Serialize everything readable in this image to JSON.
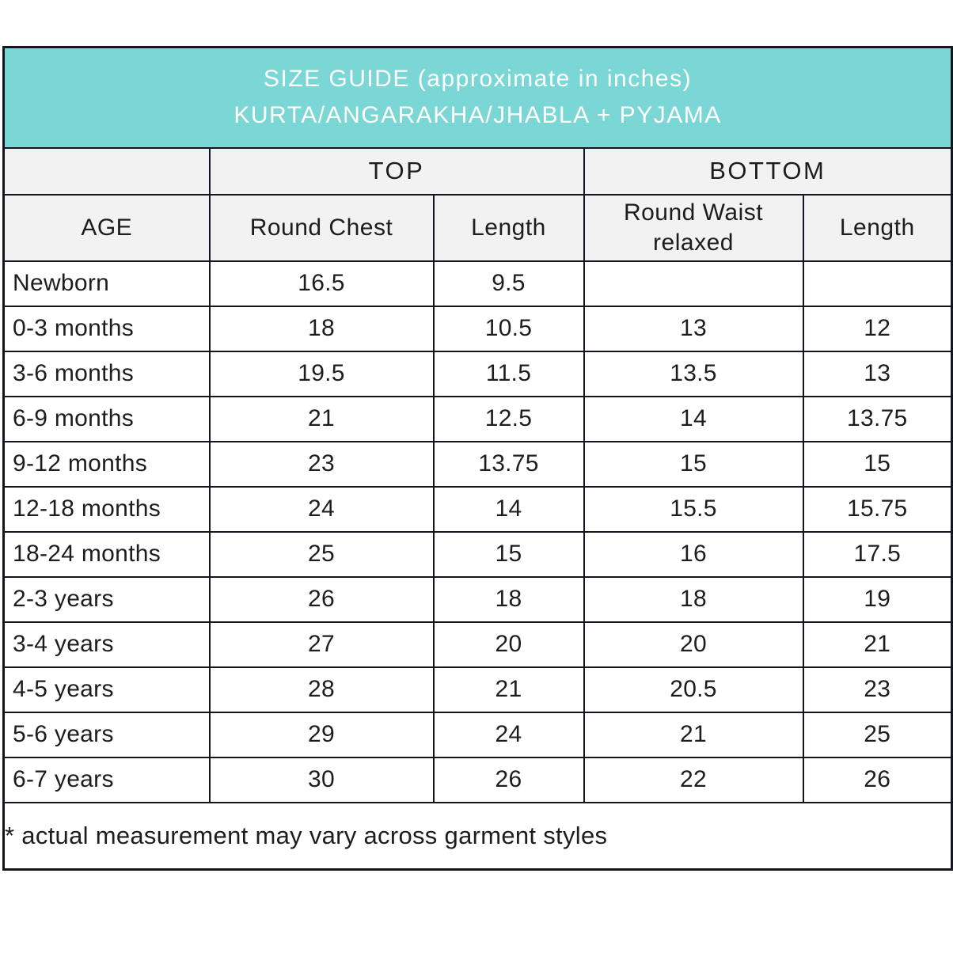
{
  "header": {
    "title_line1": "SIZE GUIDE (approximate in inches)",
    "title_line2": "KURTA/ANGARAKHA/JHABLA + PYJAMA"
  },
  "table": {
    "group_headers": {
      "age_spacer": "",
      "top": "TOP",
      "bottom": "BOTTOM"
    },
    "column_headers": {
      "age": "AGE",
      "round_chest": "Round Chest",
      "top_length": "Length",
      "round_waist": "Round Waist relaxed",
      "bottom_length": "Length"
    },
    "rows": [
      [
        "Newborn",
        "16.5",
        "9.5",
        "",
        ""
      ],
      [
        "0-3 months",
        "18",
        "10.5",
        "13",
        "12"
      ],
      [
        "3-6 months",
        "19.5",
        "11.5",
        "13.5",
        "13"
      ],
      [
        "6-9 months",
        "21",
        "12.5",
        "14",
        "13.75"
      ],
      [
        "9-12 months",
        "23",
        "13.75",
        "15",
        "15"
      ],
      [
        "12-18 months",
        "24",
        "14",
        "15.5",
        "15.75"
      ],
      [
        "18-24 months",
        "25",
        "15",
        "16",
        "17.5"
      ],
      [
        "2-3 years",
        "26",
        "18",
        "18",
        "19"
      ],
      [
        "3-4 years",
        "27",
        "20",
        "20",
        "21"
      ],
      [
        "4-5 years",
        "28",
        "21",
        "20.5",
        "23"
      ],
      [
        "5-6 years",
        "29",
        "24",
        "21",
        "25"
      ],
      [
        "6-7 years",
        "30",
        "26",
        "22",
        "26"
      ]
    ],
    "footnote": "* actual measurement may vary across garment styles"
  },
  "colors": {
    "header_bg": "#7bd7d5",
    "header_text": "#ffffff",
    "subheader_bg": "#f2f2f2",
    "border": "#15151f",
    "text": "#1d1d1d",
    "row_bg": "#ffffff"
  }
}
